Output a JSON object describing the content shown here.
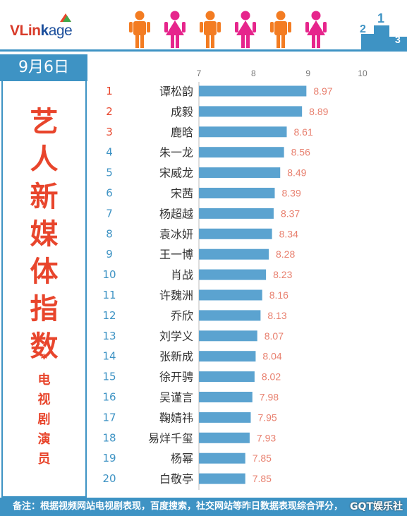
{
  "brand": {
    "v": "VLin",
    "k": "k",
    "age": "age"
  },
  "podium_numbers": [
    "2",
    "1",
    "3"
  ],
  "date": "9月6日",
  "side_title_chars": [
    "艺",
    "人",
    "新",
    "媒",
    "体",
    "指",
    "数"
  ],
  "side_star": "*",
  "side_sub_chars": [
    "电",
    "视",
    "剧",
    "演",
    "员"
  ],
  "colors": {
    "accent": "#3e93c4",
    "bar": "#5ba3d0",
    "value": "#e8806f",
    "rank_top": "#e8452c",
    "rank": "#3e93c4",
    "male": "#f37c22",
    "female": "#e6258c"
  },
  "chart_data": {
    "type": "bar",
    "orientation": "horizontal",
    "xlim": [
      7,
      10
    ],
    "ticks": [
      7,
      8,
      9,
      10
    ],
    "ranks": [
      1,
      2,
      3,
      4,
      5,
      6,
      7,
      8,
      9,
      10,
      11,
      12,
      13,
      14,
      15,
      16,
      17,
      18,
      19,
      20
    ],
    "categories": [
      "谭松韵",
      "成毅",
      "鹿晗",
      "朱一龙",
      "宋威龙",
      "宋茜",
      "杨超越",
      "袁冰妍",
      "王一博",
      "肖战",
      "许魏洲",
      "乔欣",
      "刘学义",
      "张新成",
      "徐开骋",
      "吴谨言",
      "鞠婧祎",
      "易烊千玺",
      "杨幂",
      "白敬亭"
    ],
    "values": [
      8.97,
      8.89,
      8.61,
      8.56,
      8.49,
      8.39,
      8.37,
      8.34,
      8.28,
      8.23,
      8.16,
      8.13,
      8.07,
      8.04,
      8.02,
      7.98,
      7.95,
      7.93,
      7.85,
      7.85
    ]
  },
  "footer": "备注：根据视频网站电视剧表现，百度搜索，社交网站等昨日数据表现综合评分，",
  "watermark": "GQT娱乐社"
}
